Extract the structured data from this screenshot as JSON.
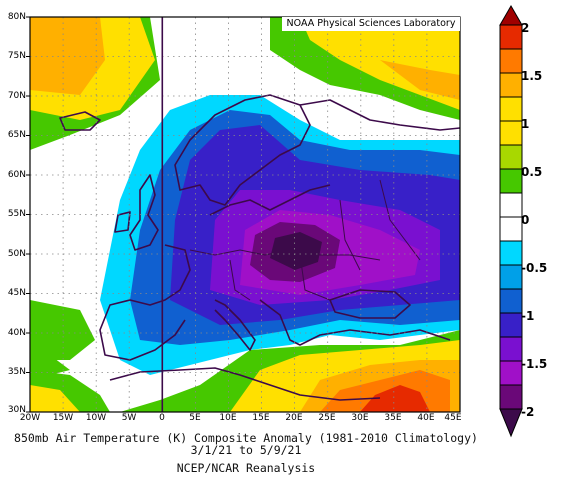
{
  "credit": "NOAA Physical Sciences Laboratory",
  "caption_line1": "850mb Air Temperature (K) Composite Anomaly (1981-2010 Climatology)",
  "caption_line2": "3/1/21 to 5/9/21",
  "caption_line3": "NCEP/NCAR Reanalysis",
  "map": {
    "lat_labels": [
      "80N",
      "75N",
      "70N",
      "65N",
      "60N",
      "55N",
      "50N",
      "45N",
      "40N",
      "35N",
      "30N"
    ],
    "lon_labels": [
      "20W",
      "15W",
      "10W",
      "5W",
      "0",
      "5E",
      "10E",
      "15E",
      "20E",
      "25E",
      "30E",
      "35E",
      "40E",
      "45E"
    ]
  },
  "colorbar": {
    "labels": [
      "2",
      "1.5",
      "1",
      "0.5",
      "0",
      "-0.5",
      "-1",
      "-1.5",
      "-2"
    ],
    "colors": [
      "#a00000",
      "#e62a00",
      "#ff7a00",
      "#ffb000",
      "#ffe000",
      "#a8d800",
      "#46c800",
      "#ffffff",
      "#ffffff",
      "#00d8ff",
      "#00a0e8",
      "#1060d0",
      "#3820c8",
      "#7a10d0",
      "#a010c8",
      "#6a0878",
      "#3c0a4a"
    ]
  },
  "chart_data": {
    "type": "heatmap",
    "variable": "850mb Air Temperature (K) Composite Anomaly",
    "lon_range": [
      -20,
      45
    ],
    "lat_range": [
      30,
      80
    ],
    "color_range": [
      -2,
      2
    ],
    "field": [
      {
        "region": "Central Europe (~15E-22E, 48N-53N)",
        "value": -2.0
      },
      {
        "region": "Eastern Europe / Balkans",
        "value": -1.5
      },
      {
        "region": "Scandinavia (southern)",
        "value": -1.0
      },
      {
        "region": "Western Russia 55N-65N",
        "value": -1.0
      },
      {
        "region": "Iberia / France",
        "value": -0.5
      },
      {
        "region": "North Africa coast",
        "value": 0.5
      },
      {
        "region": "Eastern Mediterranean / Near East",
        "value": 1.5
      },
      {
        "region": "Atlantic west of Iberia",
        "value": 0.5
      },
      {
        "region": "Greenland Sea / Norwegian Sea",
        "value": 0.5
      },
      {
        "region": "Barents Sea region 70N-80N",
        "value": 1.0
      }
    ]
  }
}
